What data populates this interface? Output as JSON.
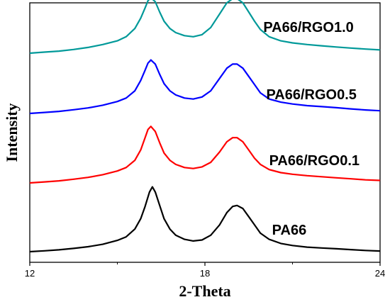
{
  "chart_data": {
    "type": "line",
    "title": "",
    "xlabel": "2-Theta",
    "ylabel": "Intensity",
    "xlim": [
      12,
      24
    ],
    "xticks": [
      12,
      18,
      24
    ],
    "yticks": [],
    "grid": false,
    "series": [
      {
        "name": "PA66",
        "color": "#000000",
        "label_x": 20.3,
        "points": [
          [
            12.0,
            0.0
          ],
          [
            12.5,
            0.004
          ],
          [
            13.0,
            0.009
          ],
          [
            13.5,
            0.016
          ],
          [
            14.0,
            0.024
          ],
          [
            14.5,
            0.036
          ],
          [
            15.0,
            0.055
          ],
          [
            15.3,
            0.072
          ],
          [
            15.6,
            0.11
          ],
          [
            15.8,
            0.16
          ],
          [
            15.95,
            0.22
          ],
          [
            16.1,
            0.29
          ],
          [
            16.2,
            0.315
          ],
          [
            16.3,
            0.29
          ],
          [
            16.45,
            0.225
          ],
          [
            16.6,
            0.16
          ],
          [
            16.8,
            0.11
          ],
          [
            17.0,
            0.08
          ],
          [
            17.3,
            0.06
          ],
          [
            17.6,
            0.052
          ],
          [
            17.9,
            0.057
          ],
          [
            18.2,
            0.08
          ],
          [
            18.5,
            0.13
          ],
          [
            18.75,
            0.19
          ],
          [
            18.95,
            0.22
          ],
          [
            19.1,
            0.225
          ],
          [
            19.3,
            0.21
          ],
          [
            19.5,
            0.17
          ],
          [
            19.7,
            0.13
          ],
          [
            19.9,
            0.09
          ],
          [
            20.2,
            0.06
          ],
          [
            20.6,
            0.04
          ],
          [
            21.0,
            0.03
          ],
          [
            21.5,
            0.022
          ],
          [
            22.0,
            0.018
          ],
          [
            22.5,
            0.014
          ],
          [
            23.0,
            0.01
          ],
          [
            23.5,
            0.006
          ],
          [
            24.0,
            0.003
          ]
        ]
      },
      {
        "name": "PA66/RGO0.1",
        "color": "#ff0000",
        "label_x": 20.2,
        "points": [
          [
            12.0,
            0.0
          ],
          [
            12.5,
            0.005
          ],
          [
            13.0,
            0.01
          ],
          [
            13.5,
            0.018
          ],
          [
            14.0,
            0.027
          ],
          [
            14.5,
            0.04
          ],
          [
            15.0,
            0.058
          ],
          [
            15.3,
            0.075
          ],
          [
            15.6,
            0.11
          ],
          [
            15.8,
            0.16
          ],
          [
            15.95,
            0.22
          ],
          [
            16.05,
            0.26
          ],
          [
            16.15,
            0.275
          ],
          [
            16.3,
            0.25
          ],
          [
            16.45,
            0.195
          ],
          [
            16.6,
            0.145
          ],
          [
            16.8,
            0.11
          ],
          [
            17.0,
            0.09
          ],
          [
            17.3,
            0.075
          ],
          [
            17.6,
            0.07
          ],
          [
            17.9,
            0.078
          ],
          [
            18.2,
            0.1
          ],
          [
            18.5,
            0.15
          ],
          [
            18.75,
            0.2
          ],
          [
            18.95,
            0.22
          ],
          [
            19.1,
            0.22
          ],
          [
            19.3,
            0.2
          ],
          [
            19.5,
            0.16
          ],
          [
            19.7,
            0.12
          ],
          [
            19.9,
            0.09
          ],
          [
            20.2,
            0.065
          ],
          [
            20.6,
            0.05
          ],
          [
            21.0,
            0.042
          ],
          [
            21.5,
            0.035
          ],
          [
            22.0,
            0.03
          ],
          [
            22.5,
            0.025
          ],
          [
            23.0,
            0.02
          ],
          [
            23.5,
            0.015
          ],
          [
            24.0,
            0.012
          ]
        ]
      },
      {
        "name": "PA66/RGO0.5",
        "color": "#0000ff",
        "label_x": 20.1,
        "points": [
          [
            12.0,
            0.0
          ],
          [
            12.5,
            0.005
          ],
          [
            13.0,
            0.01
          ],
          [
            13.5,
            0.018
          ],
          [
            14.0,
            0.027
          ],
          [
            14.5,
            0.04
          ],
          [
            15.0,
            0.058
          ],
          [
            15.3,
            0.075
          ],
          [
            15.6,
            0.11
          ],
          [
            15.8,
            0.16
          ],
          [
            15.95,
            0.21
          ],
          [
            16.05,
            0.245
          ],
          [
            16.15,
            0.26
          ],
          [
            16.3,
            0.24
          ],
          [
            16.45,
            0.19
          ],
          [
            16.6,
            0.145
          ],
          [
            16.8,
            0.11
          ],
          [
            17.0,
            0.09
          ],
          [
            17.3,
            0.075
          ],
          [
            17.6,
            0.07
          ],
          [
            17.9,
            0.08
          ],
          [
            18.2,
            0.11
          ],
          [
            18.5,
            0.17
          ],
          [
            18.75,
            0.22
          ],
          [
            18.95,
            0.24
          ],
          [
            19.1,
            0.24
          ],
          [
            19.3,
            0.22
          ],
          [
            19.5,
            0.18
          ],
          [
            19.7,
            0.14
          ],
          [
            19.9,
            0.1
          ],
          [
            20.2,
            0.07
          ],
          [
            20.6,
            0.055
          ],
          [
            21.0,
            0.046
          ],
          [
            21.5,
            0.038
          ],
          [
            22.0,
            0.033
          ],
          [
            22.5,
            0.028
          ],
          [
            23.0,
            0.022
          ],
          [
            23.5,
            0.017
          ],
          [
            24.0,
            0.013
          ]
        ]
      },
      {
        "name": "PA66/RGO1.0",
        "color": "#009999",
        "label_x": 20.0,
        "points": [
          [
            12.0,
            0.0
          ],
          [
            12.5,
            0.005
          ],
          [
            13.0,
            0.01
          ],
          [
            13.5,
            0.018
          ],
          [
            14.0,
            0.028
          ],
          [
            14.5,
            0.042
          ],
          [
            15.0,
            0.06
          ],
          [
            15.3,
            0.08
          ],
          [
            15.6,
            0.12
          ],
          [
            15.8,
            0.17
          ],
          [
            15.95,
            0.22
          ],
          [
            16.05,
            0.255
          ],
          [
            16.15,
            0.27
          ],
          [
            16.3,
            0.25
          ],
          [
            16.45,
            0.2
          ],
          [
            16.6,
            0.155
          ],
          [
            16.8,
            0.12
          ],
          [
            17.0,
            0.1
          ],
          [
            17.3,
            0.085
          ],
          [
            17.6,
            0.08
          ],
          [
            17.9,
            0.09
          ],
          [
            18.2,
            0.125
          ],
          [
            18.5,
            0.19
          ],
          [
            18.75,
            0.245
          ],
          [
            18.95,
            0.265
          ],
          [
            19.1,
            0.265
          ],
          [
            19.3,
            0.245
          ],
          [
            19.5,
            0.2
          ],
          [
            19.7,
            0.155
          ],
          [
            19.9,
            0.115
          ],
          [
            20.2,
            0.08
          ],
          [
            20.6,
            0.06
          ],
          [
            21.0,
            0.05
          ],
          [
            21.5,
            0.042
          ],
          [
            22.0,
            0.036
          ],
          [
            22.5,
            0.03
          ],
          [
            23.0,
            0.025
          ],
          [
            23.5,
            0.02
          ],
          [
            24.0,
            0.016
          ]
        ]
      }
    ]
  }
}
